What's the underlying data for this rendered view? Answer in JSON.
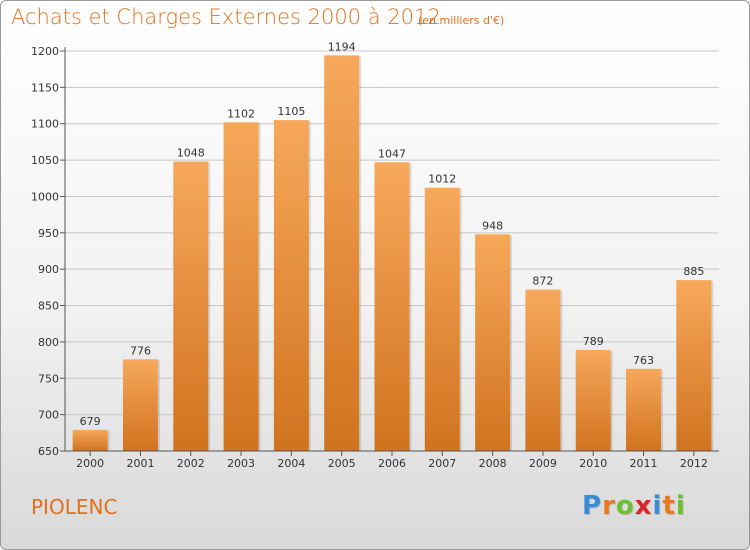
{
  "header": {
    "title": "Achats et Charges Externes 2000 à 2012",
    "subtitle": "(en milliers d'€)"
  },
  "footer": {
    "commune": "PIOLENC",
    "logo_letters": [
      "P",
      "r",
      "o",
      "x",
      "i",
      "t",
      "i"
    ],
    "logo_colors": [
      "#3a8ad6",
      "#e8781c",
      "#6cbf2e",
      "#d9262b",
      "#3a8ad6",
      "#e8781c",
      "#6cbf2e"
    ]
  },
  "chart_data": {
    "type": "bar",
    "categories": [
      "2000",
      "2001",
      "2002",
      "2003",
      "2004",
      "2005",
      "2006",
      "2007",
      "2008",
      "2009",
      "2010",
      "2011",
      "2012"
    ],
    "values": [
      679,
      776,
      1048,
      1102,
      1105,
      1194,
      1047,
      1012,
      948,
      872,
      789,
      763,
      885
    ],
    "title": "Achats et Charges Externes 2000 à 2012",
    "subtitle": "(en milliers d'€)",
    "ylim": [
      650,
      1200
    ],
    "yticks": [
      650,
      700,
      750,
      800,
      850,
      900,
      950,
      1000,
      1050,
      1100,
      1150,
      1200
    ],
    "grid": true,
    "bar_color_top": "#f7a85a",
    "bar_color_bottom": "#d0731f"
  }
}
